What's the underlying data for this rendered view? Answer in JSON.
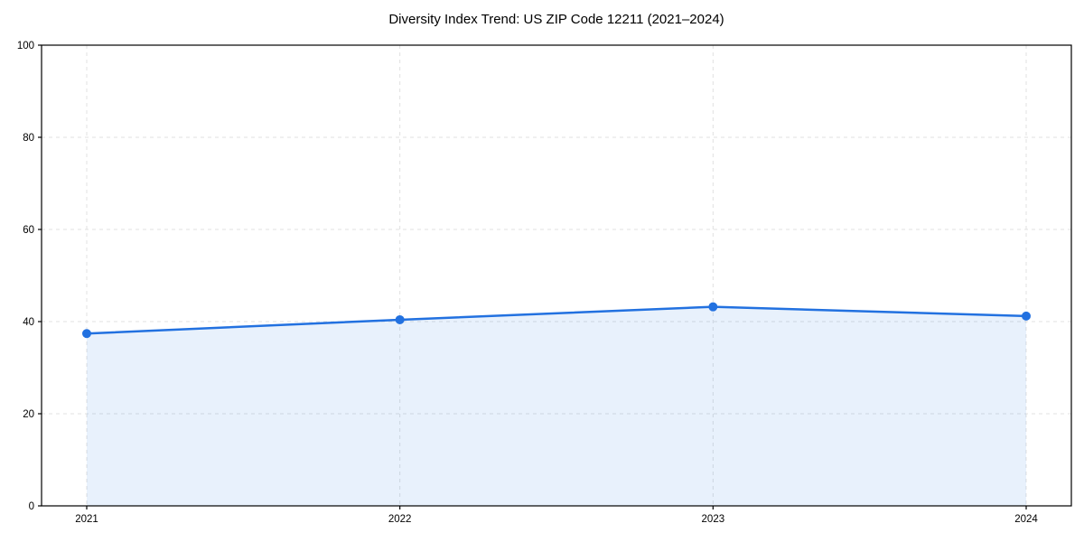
{
  "title": "Diversity Index Trend: US ZIP Code 12211 (2021–2024)",
  "chart_data": {
    "type": "area",
    "title": "Diversity Index Trend: US ZIP Code 12211 (2021–2024)",
    "categories": [
      "2021",
      "2022",
      "2023",
      "2024"
    ],
    "x": [
      2021,
      2022,
      2023,
      2024
    ],
    "series": [
      {
        "name": "Diversity Index",
        "values": [
          37.4,
          40.4,
          43.2,
          41.2
        ]
      }
    ],
    "xlabel": "",
    "ylabel": "",
    "ylim": [
      0,
      100
    ],
    "yticks": [
      0,
      20,
      40,
      60,
      80,
      100
    ],
    "grid": true,
    "grid_style": "dashed",
    "legend_position": "none",
    "colors": {
      "line": "#2271e0",
      "marker": "#2271e0",
      "fill": "rgba(34,113,224,0.10)",
      "grid": "#e0e0e0",
      "spine": "#000000",
      "text": "#000000",
      "background": "#ffffff"
    }
  }
}
